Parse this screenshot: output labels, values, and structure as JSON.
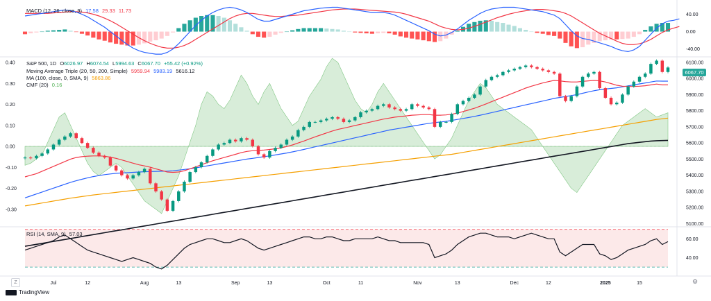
{
  "chart_data": {
    "type": "candlestick",
    "title": "S&P 500, 1D",
    "ohlc_header": {
      "O": "6026.97",
      "H": "6074.54",
      "L": "5994.63",
      "C": "6067.70",
      "change": "+55.42 (+0.92%)"
    },
    "last_price": "6067.70",
    "price_axis": {
      "ticks": [
        "6100.00",
        "6000.00",
        "5900.00",
        "5800.00",
        "5700.00",
        "5600.00",
        "5500.00",
        "5400.00",
        "5300.00",
        "5200.00",
        "5100.00"
      ],
      "range": [
        5085,
        6125
      ]
    },
    "cmf_axis": {
      "ticks": [
        "0.40",
        "0.30",
        "0.20",
        "0.10",
        "0.00",
        "-0.10",
        "-0.20",
        "-0.30"
      ],
      "range": [
        -0.38,
        0.42
      ]
    },
    "macd_axis": {
      "ticks": [
        "40.00",
        "0.00",
        "-40.00"
      ],
      "range": [
        -55,
        60
      ]
    },
    "rsi_axis": {
      "ticks": [
        "60.00",
        "40.00"
      ],
      "range": [
        22,
        72
      ],
      "upper": 70,
      "lower": 30
    },
    "x_labels": [
      "Jul",
      "12",
      "Aug",
      "13",
      "Sep",
      "13",
      "Oct",
      "11",
      "Nov",
      "13",
      "Dec",
      "12",
      "2025",
      "15"
    ],
    "indicators": {
      "macd_label": "MACD (12, 26, close, 9)",
      "macd_values": [
        "17.58",
        "29.33",
        "11.73"
      ],
      "ma_triple_label": "Moving Average Triple (20, 50, 200, Simple)",
      "ma_triple_values": [
        "5959.94",
        "5983.19",
        "5616.12"
      ],
      "ma100_label": "MA (100, close, 0, SMA, 9)",
      "ma100_value": "5863.86",
      "cmf_label": "CMF (20)",
      "cmf_value": "0.16",
      "rsi_label": "RSI (14, SMA, 9)",
      "rsi_value": "57.03"
    },
    "series": [
      {
        "name": "Close",
        "values": [
          5510,
          5505,
          5520,
          5535,
          5560,
          5590,
          5620,
          5640,
          5660,
          5630,
          5600,
          5570,
          5540,
          5520,
          5510,
          5460,
          5430,
          5400,
          5380,
          5400,
          5420,
          5440,
          5350,
          5300,
          5250,
          5180,
          5240,
          5300,
          5360,
          5420,
          5450,
          5480,
          5520,
          5560,
          5590,
          5600,
          5620,
          5610,
          5630,
          5620,
          5580,
          5530,
          5510,
          5550,
          5570,
          5590,
          5620,
          5640,
          5680,
          5700,
          5730,
          5730,
          5740,
          5750,
          5760,
          5750,
          5730,
          5740,
          5760,
          5790,
          5800,
          5810,
          5830,
          5840,
          5820,
          5810,
          5800,
          5810,
          5840,
          5830,
          5820,
          5810,
          5700,
          5730,
          5730,
          5780,
          5840,
          5860,
          5880,
          5900,
          5950,
          5990,
          6010,
          6020,
          6040,
          6050,
          6060,
          6070,
          6080,
          6070,
          6060,
          6050,
          6040,
          6030,
          5890,
          5860,
          5890,
          5950,
          6010,
          6030,
          6040,
          5940,
          5880,
          5840,
          5850,
          5900,
          5950,
          5980,
          6010,
          6030,
          6090,
          6110,
          6040,
          6067.7
        ]
      },
      {
        "name": "MA20",
        "values": [
          5390,
          5400,
          5410,
          5425,
          5440,
          5455,
          5470,
          5485,
          5500,
          5510,
          5515,
          5518,
          5520,
          5520,
          5518,
          5512,
          5505,
          5495,
          5485,
          5475,
          5465,
          5458,
          5450,
          5440,
          5430,
          5420,
          5418,
          5420,
          5428,
          5440,
          5452,
          5465,
          5478,
          5490,
          5500,
          5510,
          5520,
          5530,
          5540,
          5548,
          5552,
          5554,
          5556,
          5560,
          5564,
          5570,
          5578,
          5588,
          5600,
          5612,
          5625,
          5638,
          5650,
          5662,
          5674,
          5684,
          5692,
          5700,
          5708,
          5716,
          5724,
          5732,
          5740,
          5748,
          5754,
          5760,
          5764,
          5768,
          5772,
          5774,
          5776,
          5776,
          5772,
          5772,
          5774,
          5778,
          5785,
          5795,
          5805,
          5815,
          5828,
          5842,
          5856,
          5870,
          5884,
          5898,
          5912,
          5926,
          5940,
          5952,
          5962,
          5972,
          5980,
          5988,
          5985,
          5980,
          5978,
          5978,
          5982,
          5985,
          5988,
          5985,
          5978,
          5968,
          5958,
          5952,
          5950,
          5950,
          5952,
          5955,
          5960,
          5965,
          5960,
          5959.94
        ]
      },
      {
        "name": "MA50",
        "values": [
          5260,
          5272,
          5284,
          5296,
          5308,
          5320,
          5332,
          5344,
          5356,
          5366,
          5375,
          5384,
          5392,
          5398,
          5404,
          5408,
          5412,
          5414,
          5416,
          5418,
          5420,
          5422,
          5423,
          5424,
          5425,
          5426,
          5428,
          5432,
          5436,
          5440,
          5446,
          5452,
          5458,
          5464,
          5470,
          5476,
          5482,
          5488,
          5494,
          5500,
          5505,
          5510,
          5515,
          5520,
          5526,
          5532,
          5538,
          5545,
          5552,
          5560,
          5568,
          5576,
          5584,
          5592,
          5600,
          5608,
          5616,
          5624,
          5632,
          5640,
          5648,
          5656,
          5664,
          5672,
          5680,
          5686,
          5692,
          5698,
          5704,
          5710,
          5716,
          5722,
          5726,
          5730,
          5734,
          5740,
          5746,
          5752,
          5758,
          5765,
          5772,
          5780,
          5788,
          5796,
          5804,
          5812,
          5820,
          5828,
          5836,
          5844,
          5852,
          5860,
          5868,
          5876,
          5882,
          5888,
          5894,
          5900,
          5908,
          5916,
          5924,
          5930,
          5934,
          5938,
          5942,
          5948,
          5954,
          5960,
          5966,
          5972,
          5978,
          5984,
          5983,
          5983.19
        ]
      },
      {
        "name": "MA100",
        "values": [
          5210,
          5216,
          5222,
          5228,
          5234,
          5240,
          5246,
          5252,
          5258,
          5263,
          5268,
          5273,
          5278,
          5282,
          5286,
          5290,
          5294,
          5298,
          5302,
          5306,
          5310,
          5314,
          5318,
          5322,
          5326,
          5330,
          5334,
          5338,
          5342,
          5346,
          5350,
          5354,
          5358,
          5362,
          5366,
          5370,
          5374,
          5378,
          5382,
          5386,
          5390,
          5394,
          5398,
          5402,
          5406,
          5410,
          5414,
          5418,
          5422,
          5426,
          5430,
          5434,
          5438,
          5442,
          5446,
          5450,
          5454,
          5458,
          5462,
          5466,
          5470,
          5474,
          5478,
          5482,
          5486,
          5490,
          5494,
          5498,
          5502,
          5506,
          5510,
          5514,
          5518,
          5522,
          5526,
          5530,
          5536,
          5542,
          5548,
          5554,
          5560,
          5566,
          5572,
          5578,
          5584,
          5590,
          5596,
          5602,
          5608,
          5614,
          5620,
          5626,
          5632,
          5638,
          5644,
          5650,
          5656,
          5662,
          5668,
          5674,
          5680,
          5686,
          5692,
          5698,
          5704,
          5710,
          5716,
          5722,
          5728,
          5734,
          5740,
          5746,
          5750,
          5863.86
        ]
      },
      {
        "name": "MA200",
        "values": [
          4960,
          4966,
          4972,
          4978,
          4984,
          4990,
          4996,
          5002,
          5008,
          5014,
          5020,
          5026,
          5032,
          5038,
          5044,
          5050,
          5056,
          5062,
          5068,
          5074,
          5080,
          5086,
          5092,
          5098,
          5104,
          5110,
          5116,
          5122,
          5128,
          5134,
          5140,
          5146,
          5152,
          5158,
          5164,
          5170,
          5176,
          5182,
          5188,
          5194,
          5200,
          5206,
          5212,
          5218,
          5224,
          5230,
          5236,
          5242,
          5248,
          5254,
          5260,
          5266,
          5272,
          5278,
          5284,
          5290,
          5296,
          5302,
          5308,
          5314,
          5320,
          5326,
          5332,
          5338,
          5344,
          5350,
          5356,
          5362,
          5368,
          5374,
          5380,
          5386,
          5392,
          5398,
          5404,
          5410,
          5416,
          5422,
          5428,
          5434,
          5440,
          5446,
          5452,
          5458,
          5464,
          5470,
          5476,
          5482,
          5488,
          5494,
          5500,
          5506,
          5512,
          5518,
          5524,
          5530,
          5536,
          5542,
          5548,
          5554,
          5560,
          5566,
          5572,
          5578,
          5584,
          5590,
          5596,
          5600,
          5604,
          5608,
          5612,
          5614,
          5615,
          5616.12
        ]
      },
      {
        "name": "CMF",
        "values": [
          -0.09,
          -0.08,
          -0.06,
          -0.04,
          0.02,
          0.08,
          0.14,
          0.16,
          0.1,
          0.04,
          -0.02,
          -0.08,
          -0.12,
          -0.14,
          -0.12,
          -0.1,
          -0.08,
          -0.1,
          -0.14,
          -0.18,
          -0.22,
          -0.26,
          -0.28,
          -0.3,
          -0.32,
          -0.26,
          -0.2,
          -0.14,
          -0.06,
          0.02,
          0.1,
          0.2,
          0.26,
          0.24,
          0.2,
          0.18,
          0.22,
          0.28,
          0.34,
          0.3,
          0.24,
          0.2,
          0.26,
          0.3,
          0.24,
          0.18,
          0.14,
          0.1,
          0.12,
          0.18,
          0.24,
          0.28,
          0.32,
          0.38,
          0.42,
          0.4,
          0.34,
          0.28,
          0.22,
          0.18,
          0.16,
          0.2,
          0.26,
          0.3,
          0.26,
          0.22,
          0.18,
          0.14,
          0.1,
          0.06,
          0.02,
          -0.02,
          -0.06,
          -0.04,
          0.0,
          0.04,
          0.1,
          0.16,
          0.22,
          0.26,
          0.3,
          0.28,
          0.24,
          0.2,
          0.18,
          0.16,
          0.14,
          0.12,
          0.1,
          0.08,
          0.04,
          0.0,
          -0.04,
          -0.08,
          -0.12,
          -0.16,
          -0.2,
          -0.22,
          -0.18,
          -0.14,
          -0.1,
          -0.06,
          -0.02,
          0.02,
          0.06,
          0.1,
          0.12,
          0.14,
          0.16,
          0.18,
          0.16,
          0.14,
          0.15,
          0.16
        ]
      },
      {
        "name": "MACD",
        "values": [
          36,
          38,
          40,
          42,
          44,
          46,
          48,
          50,
          48,
          45,
          40,
          34,
          26,
          18,
          10,
          0,
          -10,
          -20,
          -30,
          -38,
          -44,
          -48,
          -50,
          -52,
          -52,
          -48,
          -40,
          -28,
          -14,
          0,
          14,
          26,
          36,
          44,
          50,
          54,
          56,
          54,
          50,
          44,
          36,
          28,
          24,
          24,
          28,
          32,
          36,
          40,
          44,
          48,
          50,
          52,
          54,
          55,
          56,
          56,
          54,
          52,
          50,
          48,
          46,
          44,
          44,
          44,
          42,
          38,
          32,
          26,
          20,
          14,
          8,
          2,
          -6,
          -10,
          -8,
          -2,
          6,
          16,
          26,
          34,
          42,
          48,
          52,
          54,
          56,
          56,
          56,
          54,
          52,
          50,
          48,
          46,
          42,
          38,
          30,
          16,
          2,
          -10,
          -16,
          -18,
          -22,
          -26,
          -30,
          -34,
          -40,
          -44,
          -46,
          -42,
          -34,
          -20,
          -6,
          8,
          18,
          24,
          26,
          29.33
        ]
      },
      {
        "name": "Signal",
        "values": [
          42,
          42,
          42,
          42,
          42,
          43,
          44,
          45,
          46,
          46,
          45,
          43,
          40,
          36,
          31,
          25,
          18,
          10,
          2,
          -6,
          -14,
          -21,
          -27,
          -32,
          -36,
          -38,
          -38,
          -36,
          -32,
          -26,
          -18,
          -10,
          -2,
          6,
          14,
          22,
          30,
          36,
          40,
          42,
          42,
          40,
          38,
          36,
          35,
          35,
          36,
          37,
          38,
          40,
          42,
          44,
          46,
          48,
          50,
          51,
          52,
          52,
          52,
          51,
          50,
          49,
          48,
          47,
          46,
          45,
          43,
          40,
          36,
          32,
          28,
          24,
          18,
          12,
          8,
          5,
          4,
          5,
          8,
          12,
          17,
          22,
          27,
          32,
          36,
          40,
          43,
          46,
          48,
          50,
          51,
          51,
          50,
          48,
          46,
          42,
          36,
          28,
          20,
          12,
          4,
          -4,
          -10,
          -16,
          -22,
          -27,
          -30,
          -30,
          -28,
          -24,
          -18,
          -10,
          -2,
          4,
          8,
          11.73
        ]
      },
      {
        "name": "RSI",
        "values": [
          48,
          50,
          52,
          54,
          56,
          58,
          62,
          64,
          60,
          56,
          52,
          48,
          46,
          44,
          42,
          40,
          38,
          36,
          38,
          40,
          38,
          36,
          34,
          30,
          28,
          32,
          38,
          44,
          50,
          54,
          56,
          58,
          60,
          60,
          58,
          56,
          56,
          58,
          60,
          58,
          54,
          50,
          48,
          50,
          52,
          54,
          56,
          58,
          60,
          62,
          62,
          60,
          60,
          62,
          62,
          60,
          58,
          58,
          60,
          60,
          60,
          60,
          62,
          60,
          58,
          58,
          56,
          56,
          56,
          56,
          56,
          54,
          40,
          42,
          44,
          48,
          54,
          58,
          62,
          64,
          66,
          66,
          64,
          62,
          62,
          62,
          60,
          62,
          64,
          66,
          64,
          62,
          60,
          60,
          46,
          42,
          46,
          50,
          54,
          54,
          54,
          44,
          42,
          38,
          40,
          44,
          48,
          50,
          52,
          54,
          58,
          60,
          54,
          57.03
        ]
      }
    ]
  }
}
